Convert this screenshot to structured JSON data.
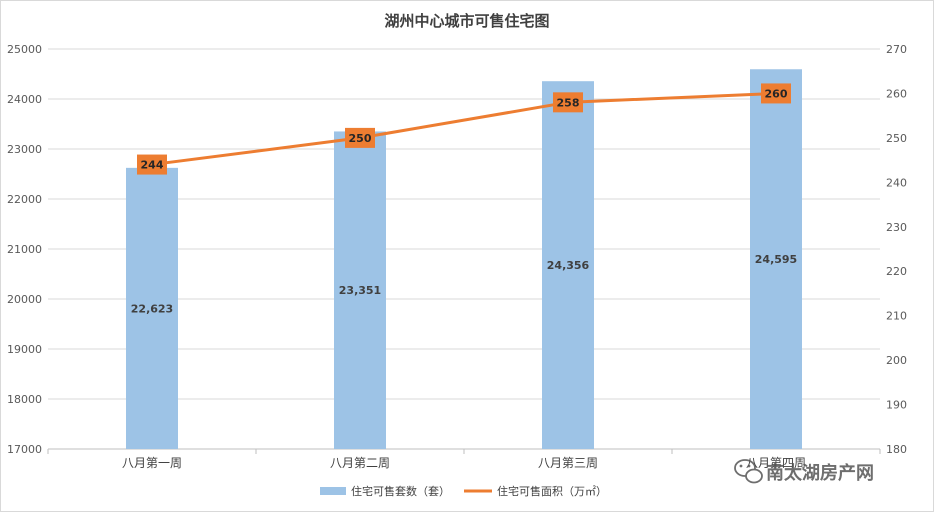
{
  "chart_data": {
    "type": "bar",
    "title": "湖州中心城市可售住宅图",
    "categories": [
      "八月第一周",
      "八月第二周",
      "八月第三周",
      "八月第四周"
    ],
    "series": [
      {
        "name": "住宅可售套数（套）",
        "type": "bar",
        "axis": "left",
        "values": [
          22623,
          23351,
          24356,
          24595
        ],
        "labels": [
          "22,623",
          "23,351",
          "24,356",
          "24,595"
        ],
        "color": "#9dc3e6"
      },
      {
        "name": "住宅可售面积（万㎡）",
        "type": "line",
        "axis": "right",
        "values": [
          244,
          250,
          258,
          260
        ],
        "labels": [
          "244",
          "250",
          "258",
          "260"
        ],
        "color": "#ed7d31"
      }
    ],
    "y_left": {
      "min": 17000,
      "max": 25000,
      "step": 1000
    },
    "y_right": {
      "min": 180,
      "max": 270,
      "step": 10
    },
    "grid": true,
    "legend_position": "bottom"
  },
  "watermark": {
    "text": "南太湖房产网",
    "icon": "wechat-icon"
  }
}
